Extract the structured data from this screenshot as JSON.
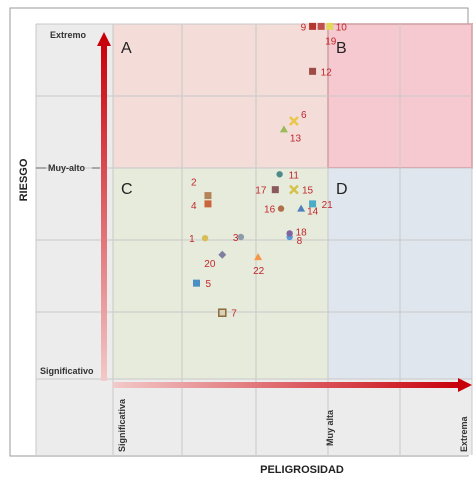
{
  "chart_data": {
    "type": "scatter",
    "xlabel": "PELIGROSIDAD",
    "ylabel": "RIESGO",
    "x_ticks": [
      "Significativa",
      "Muy alta",
      "Extrema"
    ],
    "y_ticks": [
      "Extremo",
      "Muy-alto",
      "Significativo"
    ],
    "xlim": [
      0,
      3
    ],
    "ylim": [
      0,
      3
    ],
    "grid": true,
    "quadrants": [
      {
        "label": "A",
        "color": "#f4dcd8"
      },
      {
        "label": "B",
        "color": "#f6c8cf"
      },
      {
        "label": "C",
        "color": "#e7ebdc"
      },
      {
        "label": "D",
        "color": "#dfe6ee"
      }
    ],
    "points": [
      {
        "label": "1",
        "x": 1.18,
        "y": 1.19,
        "color": "#d7bd5a",
        "marker": "circle"
      },
      {
        "label": "2",
        "x": 1.2,
        "y": 1.55,
        "color": "#b5835a",
        "marker": "square"
      },
      {
        "label": "3",
        "x": 1.43,
        "y": 1.2,
        "color": "#8e9bab",
        "marker": "circle"
      },
      {
        "label": "4",
        "x": 1.2,
        "y": 1.48,
        "color": "#c9643c",
        "marker": "square"
      },
      {
        "label": "5",
        "x": 1.12,
        "y": 0.81,
        "color": "#4a8fc4",
        "marker": "square"
      },
      {
        "label": "6",
        "x": 1.8,
        "y": 2.18,
        "color": "#e8c84a",
        "marker": "x"
      },
      {
        "label": "7",
        "x": 1.3,
        "y": 0.56,
        "color": "#8a6a3a",
        "marker": "square-open"
      },
      {
        "label": "8",
        "x": 1.77,
        "y": 1.2,
        "color": "#5b9bd5",
        "marker": "circle"
      },
      {
        "label": "9",
        "x": 1.93,
        "y": 2.98,
        "color": "#b4362f",
        "marker": "square"
      },
      {
        "label": "10",
        "x": 2.05,
        "y": 2.98,
        "color": "#e3d85a",
        "marker": "square"
      },
      {
        "label": "11",
        "x": 1.7,
        "y": 1.73,
        "color": "#4f8a8b",
        "marker": "circle"
      },
      {
        "label": "12",
        "x": 1.93,
        "y": 2.6,
        "color": "#9e4b48",
        "marker": "square"
      },
      {
        "label": "13",
        "x": 1.73,
        "y": 2.11,
        "color": "#9bbb59",
        "marker": "triangle"
      },
      {
        "label": "14",
        "x": 1.85,
        "y": 1.44,
        "color": "#4f81bd",
        "marker": "triangle"
      },
      {
        "label": "15",
        "x": 1.8,
        "y": 1.6,
        "color": "#d4c24a",
        "marker": "x"
      },
      {
        "label": "16",
        "x": 1.71,
        "y": 1.44,
        "color": "#b0704a",
        "marker": "circle"
      },
      {
        "label": "17",
        "x": 1.67,
        "y": 1.6,
        "color": "#8a5a5a",
        "marker": "square"
      },
      {
        "label": "18",
        "x": 1.77,
        "y": 1.23,
        "color": "#8064a2",
        "marker": "circle"
      },
      {
        "label": "19",
        "x": 1.99,
        "y": 2.98,
        "color": "#c0504d",
        "marker": "square"
      },
      {
        "label": "20",
        "x": 1.3,
        "y": 1.05,
        "color": "#7f7f9f",
        "marker": "diamond"
      },
      {
        "label": "21",
        "x": 1.93,
        "y": 1.48,
        "color": "#4bacc6",
        "marker": "square"
      },
      {
        "label": "22",
        "x": 1.55,
        "y": 1.03,
        "color": "#f79646",
        "marker": "triangle"
      }
    ]
  }
}
